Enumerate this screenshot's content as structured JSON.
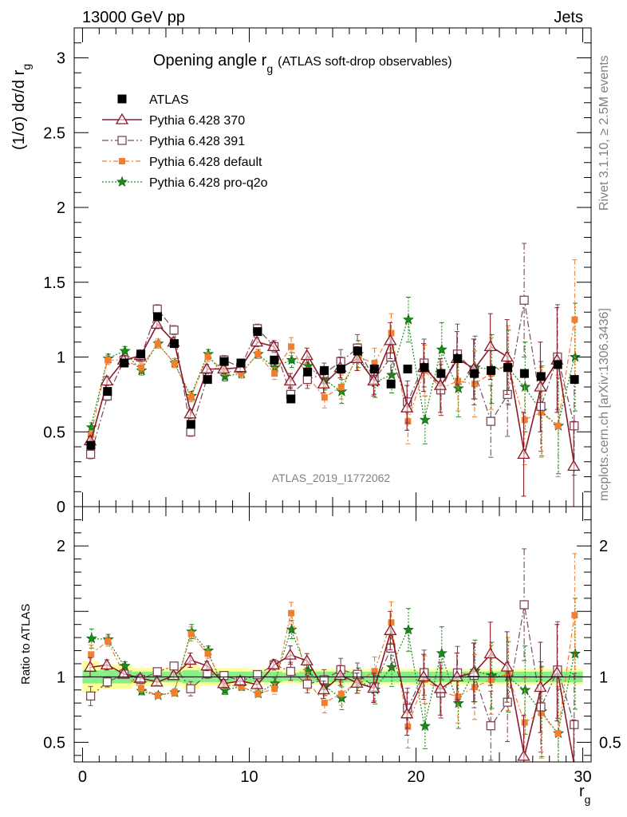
{
  "header": {
    "left": "13000 GeV pp",
    "right": "Jets"
  },
  "side": {
    "rivet": "Rivet 3.1.10, ≥ 2.5M events",
    "mcplots": "mcplots.cern.ch [arXiv:1306.3436]"
  },
  "chart_data": {
    "type": "scatter",
    "title": "Opening angle r",
    "title_sub": "g",
    "title_suffix": "(ATLAS soft-drop observables)",
    "watermark": "ATLAS_2019_I1772062",
    "ylabel": "(1/σ) dσ/d r",
    "ylabel_sub": "g",
    "xlabel": "r",
    "xlabel_sub": "g",
    "ratio_ylabel": "Ratio to ATLAS",
    "xlim": [
      -0.5,
      30.5
    ],
    "ylim": [
      0,
      3.2
    ],
    "ratio_ylim": [
      0.35,
      2.3
    ],
    "x_ticks": [
      "0",
      "10",
      "20",
      "30"
    ],
    "y_ticks": [
      "0",
      "0.5",
      "1",
      "1.5",
      "2",
      "2.5",
      "3"
    ],
    "ratio_ticks": [
      "0.5",
      "1",
      "2"
    ],
    "x": [
      0.5,
      1.5,
      2.5,
      3.5,
      4.5,
      5.5,
      6.5,
      7.5,
      8.5,
      9.5,
      10.5,
      11.5,
      12.5,
      13.5,
      14.5,
      15.5,
      16.5,
      17.5,
      18.5,
      19.5,
      20.5,
      21.5,
      22.5,
      23.5,
      24.5,
      25.5,
      26.5,
      27.5,
      28.5,
      29.5
    ],
    "series": [
      {
        "name": "ATLAS",
        "color": "#000000",
        "values": [
          0.41,
          0.77,
          0.96,
          1.02,
          1.27,
          1.09,
          0.55,
          0.85,
          0.97,
          0.96,
          1.17,
          0.98,
          0.72,
          0.9,
          0.91,
          0.92,
          1.04,
          0.92,
          0.82,
          0.92,
          0.93,
          0.89,
          0.99,
          0.89,
          0.91,
          0.93,
          0.89,
          0.87,
          0.95,
          0.85
        ]
      },
      {
        "name": "Pythia 6.428 370",
        "color": "#8b1a2b",
        "values": [
          0.44,
          0.84,
          0.98,
          1.01,
          1.22,
          1.1,
          0.62,
          0.92,
          0.92,
          0.93,
          1.1,
          1.07,
          0.84,
          1.01,
          0.82,
          0.93,
          0.99,
          0.84,
          1.11,
          0.66,
          0.93,
          0.81,
          0.99,
          0.92,
          1.07,
          1.0,
          0.35,
          0.8,
          0.98,
          0.27
        ],
        "errors": [
          0.03,
          0.03,
          0.03,
          0.03,
          0.03,
          0.03,
          0.03,
          0.03,
          0.03,
          0.03,
          0.03,
          0.03,
          0.05,
          0.05,
          0.06,
          0.07,
          0.08,
          0.1,
          0.12,
          0.15,
          0.16,
          0.18,
          0.18,
          0.2,
          0.22,
          0.25,
          0.28,
          0.3,
          0.35,
          0.3
        ]
      },
      {
        "name": "Pythia 6.428 391",
        "color": "#7a4a5a",
        "values": [
          0.35,
          0.74,
          0.98,
          1.0,
          1.32,
          1.18,
          0.5,
          0.87,
          0.98,
          0.93,
          1.19,
          1.07,
          0.75,
          0.85,
          0.89,
          0.97,
          1.06,
          0.85,
          1.0,
          0.7,
          0.96,
          0.78,
          1.02,
          0.9,
          0.57,
          0.75,
          1.38,
          0.67,
          1.0,
          0.54
        ],
        "errors": [
          0.03,
          0.03,
          0.03,
          0.03,
          0.03,
          0.03,
          0.03,
          0.03,
          0.03,
          0.03,
          0.03,
          0.04,
          0.05,
          0.06,
          0.07,
          0.08,
          0.09,
          0.1,
          0.12,
          0.14,
          0.16,
          0.17,
          0.2,
          0.22,
          0.24,
          0.28,
          0.38,
          0.3,
          0.35,
          0.33
        ]
      },
      {
        "name": "Pythia 6.428 default",
        "color": "#f08030",
        "values": [
          0.48,
          0.98,
          0.98,
          0.93,
          1.09,
          0.96,
          0.73,
          1.0,
          0.91,
          0.89,
          1.02,
          0.89,
          1.07,
          0.87,
          0.73,
          0.8,
          1.0,
          0.96,
          1.16,
          0.57,
          0.91,
          0.79,
          0.84,
          0.82,
          0.89,
          0.95,
          0.58,
          0.63,
          0.54,
          1.25
        ],
        "errors": [
          0.03,
          0.03,
          0.03,
          0.03,
          0.03,
          0.03,
          0.03,
          0.03,
          0.03,
          0.03,
          0.03,
          0.04,
          0.06,
          0.06,
          0.07,
          0.08,
          0.09,
          0.1,
          0.13,
          0.15,
          0.17,
          0.18,
          0.2,
          0.22,
          0.24,
          0.26,
          0.3,
          0.3,
          0.34,
          0.4
        ]
      },
      {
        "name": "Pythia 6.428 pro-q2o",
        "color": "#1a8a1a",
        "values": [
          0.53,
          0.99,
          1.04,
          0.91,
          1.09,
          0.96,
          0.74,
          1.02,
          0.87,
          0.89,
          1.02,
          0.93,
          0.98,
          0.94,
          0.85,
          0.77,
          1.02,
          0.83,
          0.88,
          1.25,
          0.58,
          1.05,
          0.79,
          0.93,
          0.92,
          0.93,
          0.8,
          0.64,
          0.54,
          1.0
        ],
        "errors": [
          0.03,
          0.03,
          0.03,
          0.03,
          0.03,
          0.03,
          0.03,
          0.03,
          0.03,
          0.03,
          0.03,
          0.04,
          0.05,
          0.06,
          0.07,
          0.08,
          0.09,
          0.1,
          0.12,
          0.15,
          0.16,
          0.18,
          0.19,
          0.21,
          0.23,
          0.25,
          0.3,
          0.3,
          0.32,
          0.36
        ]
      }
    ],
    "ratio_band": {
      "green": [
        0.05,
        0.05,
        0.05,
        0.04,
        0.04,
        0.04,
        0.05,
        0.04,
        0.04,
        0.04,
        0.04,
        0.04,
        0.03,
        0.04,
        0.04,
        0.04,
        0.04,
        0.04,
        0.04,
        0.04,
        0.04,
        0.04,
        0.04,
        0.04,
        0.04,
        0.04,
        0.04,
        0.04,
        0.04,
        0.04
      ],
      "yellow": [
        0.12,
        0.09,
        0.09,
        0.07,
        0.07,
        0.07,
        0.09,
        0.07,
        0.07,
        0.07,
        0.06,
        0.06,
        0.05,
        0.06,
        0.06,
        0.06,
        0.06,
        0.06,
        0.06,
        0.06,
        0.06,
        0.06,
        0.06,
        0.06,
        0.06,
        0.06,
        0.06,
        0.06,
        0.06,
        0.06
      ]
    }
  }
}
